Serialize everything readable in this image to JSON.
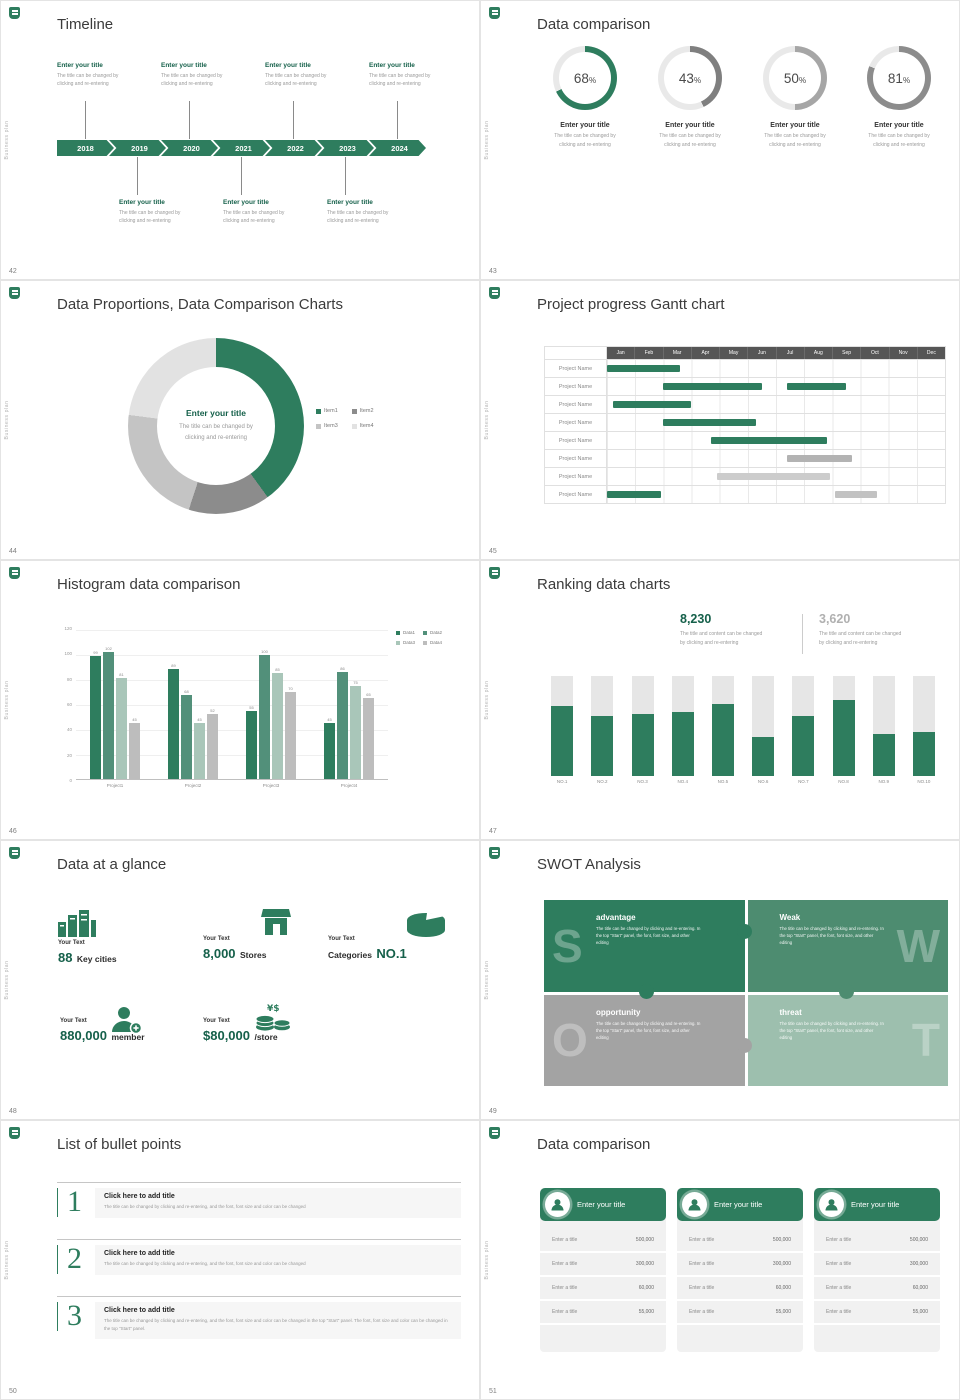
{
  "theme": {
    "green": "#2e7d5e",
    "green_dark": "#15604a",
    "green_mid": "#4d8c70",
    "green_pale": "#9dbfae",
    "gray_dark": "#7f7f7f",
    "gray": "#a6a6a6",
    "gray_light": "#d9d9d9",
    "track": "#e6e6e6"
  },
  "common": {
    "sidebar": "Business plan",
    "enter_title": "Enter your title",
    "change_l1": "The title can be changed by",
    "change_l2": "clicking and re-entering"
  },
  "s42": {
    "page": "42",
    "title": "Timeline",
    "years": [
      "2018",
      "2019",
      "2020",
      "2021",
      "2022",
      "2023",
      "2024"
    ]
  },
  "s43": {
    "page": "43",
    "title": "Data comparison",
    "items": [
      {
        "pct": "68",
        "sym": "%",
        "arc": {
          "values": [
            68,
            32
          ],
          "colors": [
            "#2e7d5e",
            "#e9e9e9"
          ]
        }
      },
      {
        "pct": "43",
        "sym": "%",
        "arc": {
          "values": [
            43,
            57
          ],
          "colors": [
            "#7f7f7f",
            "#e9e9e9"
          ]
        }
      },
      {
        "pct": "50",
        "sym": "%",
        "arc": {
          "values": [
            50,
            50
          ],
          "colors": [
            "#a6a6a6",
            "#e9e9e9"
          ]
        }
      },
      {
        "pct": "81",
        "sym": "%",
        "arc": {
          "values": [
            81,
            19
          ],
          "colors": [
            "#8c8c8c",
            "#e9e9e9"
          ]
        }
      }
    ]
  },
  "s44": {
    "page": "44",
    "title": "Data Proportions, Data Comparison Charts",
    "chart_data": {
      "type": "pie",
      "labels": [
        "Item1",
        "Item2",
        "Item3",
        "Item4"
      ],
      "values": [
        40,
        15,
        22,
        23
      ],
      "colors": [
        "#2e7d5e",
        "#8c8c8c",
        "#c4c4c4",
        "#e2e2e2"
      ],
      "legend_position": "right"
    }
  },
  "s45": {
    "page": "45",
    "title": "Project progress Gantt chart",
    "chart_data": {
      "type": "gantt",
      "months": [
        "Jan",
        "Feb",
        "Mar",
        "Apr",
        "May",
        "Jun",
        "Jul",
        "Aug",
        "Sep",
        "Oct",
        "Nov",
        "Dec"
      ],
      "row_label": "Project Name",
      "rows": 8,
      "bars": [
        {
          "row": 0,
          "start": 0,
          "end": 2.6,
          "color": "#2e7d5e"
        },
        {
          "row": 1,
          "start": 2,
          "end": 5.5,
          "color": "#2e7d5e"
        },
        {
          "row": 1,
          "start": 6.4,
          "end": 8.5,
          "color": "#2e7d5e"
        },
        {
          "row": 2,
          "start": 0.2,
          "end": 3,
          "color": "#2e7d5e"
        },
        {
          "row": 3,
          "start": 2,
          "end": 5.3,
          "color": "#2e7d5e"
        },
        {
          "row": 4,
          "start": 3.7,
          "end": 7.8,
          "color": "#2e7d5e"
        },
        {
          "row": 5,
          "start": 6.4,
          "end": 8.7,
          "color": "#b3b3b3"
        },
        {
          "row": 6,
          "start": 3.9,
          "end": 7.9,
          "color": "#cccccc"
        },
        {
          "row": 7,
          "start": 0,
          "end": 1.9,
          "color": "#2e7d5e"
        },
        {
          "row": 7,
          "start": 8.1,
          "end": 9.6,
          "color": "#c2c2c2"
        }
      ]
    }
  },
  "s46": {
    "page": "46",
    "title": "Histogram data comparison",
    "chart_data": {
      "type": "bar",
      "categories": [
        "Project1",
        "Project2",
        "Project3",
        "Project4"
      ],
      "series": [
        {
          "name": "Data1",
          "color": "#2e7d5e",
          "values": [
            99,
            89,
            55,
            45
          ]
        },
        {
          "name": "Data2",
          "color": "#52907a",
          "values": [
            102,
            68,
            100,
            86
          ]
        },
        {
          "name": "Data3",
          "color": "#a9c6b9",
          "values": [
            81,
            45,
            85,
            75
          ]
        },
        {
          "name": "Data4",
          "color": "#bdbdbd",
          "values": [
            45,
            52,
            70,
            65
          ]
        }
      ],
      "ylim": [
        0,
        120
      ],
      "yticks": [
        0,
        20,
        40,
        60,
        80,
        100,
        120
      ],
      "legend_position": "top-right"
    }
  },
  "s47": {
    "page": "47",
    "title": "Ranking data charts",
    "stat1": {
      "value": "8,230",
      "desc1": "The title and content can be changed",
      "desc2": "by clicking and re-entering"
    },
    "stat2": {
      "value": "3,620",
      "desc1": "The title and content can be changed",
      "desc2": "by clicking and re-entering"
    },
    "chart_data": {
      "type": "bar",
      "categories": [
        "NO.1",
        "NO.2",
        "NO.3",
        "NO.4",
        "NO.5",
        "NO.6",
        "NO.7",
        "NO.8",
        "NO.9",
        "NO.10"
      ],
      "values": [
        70,
        60,
        62,
        64,
        72,
        39,
        60,
        76,
        42,
        44
      ],
      "unit": "percent-of-track",
      "color": "#2e7d5e",
      "track_color": "#e6e6e6"
    }
  },
  "s48": {
    "page": "48",
    "title": "Data at a glance",
    "label": "Your Text",
    "items": [
      {
        "big": "88",
        "rest": "Key cities"
      },
      {
        "big": "8,000",
        "rest": "Stores"
      },
      {
        "pre": "Categories",
        "big": "NO.1"
      },
      {
        "big": "880,000",
        "rest": "member"
      },
      {
        "big": "$80,000",
        "rest": "/store"
      }
    ]
  },
  "s49": {
    "page": "49",
    "title": "SWOT Analysis",
    "quads": [
      {
        "letter": "S",
        "title": "advantage",
        "color": "#2e7d5e",
        "desc": "The title can be changed by clicking and re-entering. In the top \"Start\" panel, the font, font size, and other editing"
      },
      {
        "letter": "W",
        "title": "Weak",
        "color": "#4d8c70",
        "desc": "The title can be changed by clicking and re-entering. In the top \"Start\" panel, the font, font size, and other editing"
      },
      {
        "letter": "O",
        "title": "opportunity",
        "color": "#a3a3a3",
        "desc": "The title can be changed by clicking and re-entering. In the top \"Start\" panel, the font, font size, and other editing"
      },
      {
        "letter": "T",
        "title": "threat",
        "color": "#9dbfae",
        "desc": "The title can be changed by clicking and re-entering. In the top \"Start\" panel, the font, font size, and other editing"
      }
    ]
  },
  "s50": {
    "page": "50",
    "title": "List of bullet points",
    "items": [
      {
        "num": "1",
        "title": "Click here to add title",
        "desc": "The title can be changed by clicking and re-entering, and the font, font size and color can be changed"
      },
      {
        "num": "2",
        "title": "Click here to add title",
        "desc": "The title can be changed by clicking and re-entering, and the font, font size and color can be changed"
      },
      {
        "num": "3",
        "title": "Click here to add title",
        "desc": "The title can be changed by clicking and re-entering, and the font, font size and color can be changed in the top \"Start\" panel. The font, font size and color can be changed in the top \"Start\" panel."
      }
    ]
  },
  "s51": {
    "page": "51",
    "title": "Data comparison",
    "card_title": "Enter your title",
    "row_label": "Enter a title",
    "values": [
      "500,000",
      "300,000",
      "60,000",
      "55,000"
    ]
  }
}
